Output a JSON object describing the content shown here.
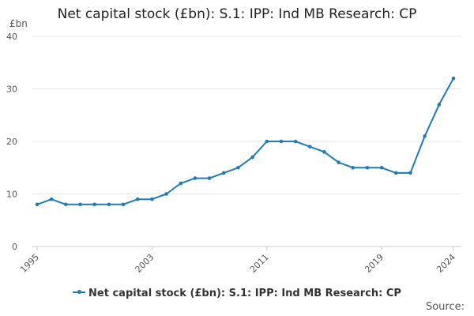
{
  "chart_data": {
    "type": "line",
    "title": "Net capital stock (£bn): S.1: IPP: Ind MB Research: CP",
    "ylabel": "£bn",
    "xlabel": "",
    "ylim": [
      0,
      40
    ],
    "yticks": [
      0,
      10,
      20,
      30,
      40
    ],
    "xlim": [
      1995,
      2024
    ],
    "xticks": [
      "1995",
      "2003",
      "2011",
      "2019",
      "2024"
    ],
    "series": [
      {
        "name": "Net capital stock (£bn): S.1: IPP: Ind MB Research: CP",
        "color": "#1f7bb6",
        "x": [
          1995,
          1996,
          1997,
          1998,
          1999,
          2000,
          2001,
          2002,
          2003,
          2004,
          2005,
          2006,
          2007,
          2008,
          2009,
          2010,
          2011,
          2012,
          2013,
          2014,
          2015,
          2016,
          2017,
          2018,
          2019,
          2020,
          2021,
          2022,
          2023,
          2024
        ],
        "values": [
          8,
          9,
          8,
          8,
          8,
          8,
          8,
          9,
          9,
          10,
          12,
          13,
          13,
          14,
          15,
          17,
          20,
          20,
          20,
          19,
          18,
          16,
          15,
          15,
          15,
          14,
          14,
          21,
          27,
          32
        ]
      }
    ],
    "grid": true,
    "legend_position": "bottom"
  },
  "source_label": "Source:"
}
